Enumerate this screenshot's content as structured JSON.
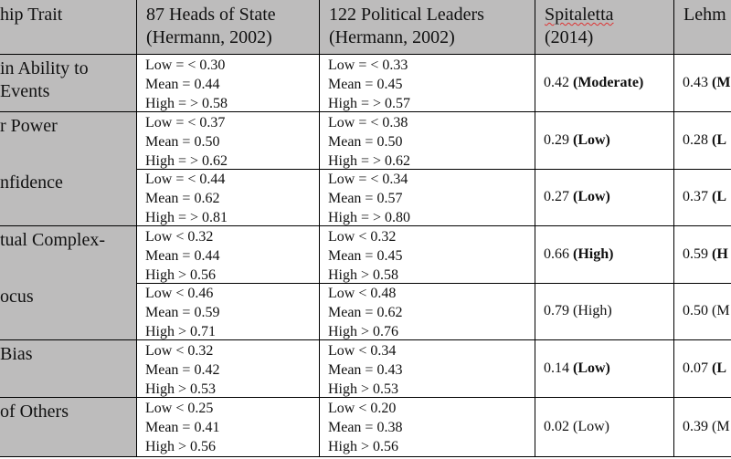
{
  "headers": {
    "trait": "hip Trait",
    "heads_line1": "87 Heads of State",
    "heads_line2": "(Hermann, 2002)",
    "leaders_line1": "122 Political Leaders",
    "leaders_line2": "(Hermann, 2002)",
    "spitaletta_line1": "Spitaletta",
    "spitaletta_line2": "(2014)",
    "lehman": "Lehm"
  },
  "rows": [
    {
      "trait_line1": "in  Ability  to",
      "trait_line2": " Events",
      "heads": [
        "Low = < 0.30",
        "Mean = 0.44",
        "High = > 0.58"
      ],
      "leaders": [
        "Low = < 0.33",
        "Mean = 0.45",
        "High = > 0.57"
      ],
      "spitaletta_value": "0.42",
      "spitaletta_level": "(Moderate)",
      "spitaletta_bold": true,
      "lehman_value": "0.43",
      "lehman_level": "(M",
      "lehman_bold": true
    },
    {
      "trait_line1": "r Power",
      "trait_line2": "",
      "heads": [
        "Low = < 0.37",
        "Mean = 0.50",
        "High = > 0.62"
      ],
      "leaders": [
        "Low = < 0.38",
        "Mean = 0.50",
        "High = > 0.62"
      ],
      "spitaletta_value": "0.29",
      "spitaletta_level": "(Low)",
      "spitaletta_bold": true,
      "lehman_value": "0.28",
      "lehman_level": "(L",
      "lehman_bold": true
    },
    {
      "trait_line1": "nfidence",
      "trait_line2": "",
      "heads": [
        "Low = < 0.44",
        "Mean = 0.62",
        "High = > 0.81"
      ],
      "leaders": [
        "Low = < 0.34",
        "Mean = 0.57",
        "High = > 0.80"
      ],
      "spitaletta_value": "0.27",
      "spitaletta_level": "(Low)",
      "spitaletta_bold": true,
      "lehman_value": "0.37",
      "lehman_level": "(L",
      "lehman_bold": true
    },
    {
      "trait_line1": "tual  Complex-",
      "trait_line2": "",
      "heads": [
        "Low < 0.32",
        "Mean = 0.44",
        "High > 0.56"
      ],
      "leaders": [
        "Low < 0.32",
        "Mean = 0.45",
        "High > 0.58"
      ],
      "spitaletta_value": "0.66",
      "spitaletta_level": "(High)",
      "spitaletta_bold": true,
      "lehman_value": "0.59",
      "lehman_level": "(H",
      "lehman_bold": true
    },
    {
      "trait_line1": "ocus",
      "trait_line2": "",
      "heads": [
        "Low < 0.46",
        "Mean = 0.59",
        "High > 0.71"
      ],
      "leaders": [
        "Low < 0.48",
        "Mean = 0.62",
        "High > 0.76"
      ],
      "spitaletta_value": "0.79",
      "spitaletta_level": "(High)",
      "spitaletta_bold": false,
      "lehman_value": "0.50",
      "lehman_level": "(M",
      "lehman_bold": false
    },
    {
      "trait_line1": " Bias",
      "trait_line2": "",
      "heads": [
        "Low < 0.32",
        "Mean = 0.42",
        "High > 0.53"
      ],
      "leaders": [
        "Low < 0.34",
        "Mean = 0.43",
        "High > 0.53"
      ],
      "spitaletta_value": "0.14",
      "spitaletta_level": "(Low)",
      "spitaletta_bold": true,
      "lehman_value": "0.07",
      "lehman_level": "(L",
      "lehman_bold": true
    },
    {
      "trait_line1": " of Others",
      "trait_line2": "",
      "heads": [
        "Low < 0.25",
        "Mean = 0.41",
        "High > 0.56"
      ],
      "leaders": [
        "Low < 0.20",
        "Mean = 0.38",
        "High > 0.56"
      ],
      "spitaletta_value": "0.02",
      "spitaletta_level": "(Low)",
      "spitaletta_bold": false,
      "lehman_value": "0.39",
      "lehman_level": "(M",
      "lehman_bold": false
    }
  ]
}
